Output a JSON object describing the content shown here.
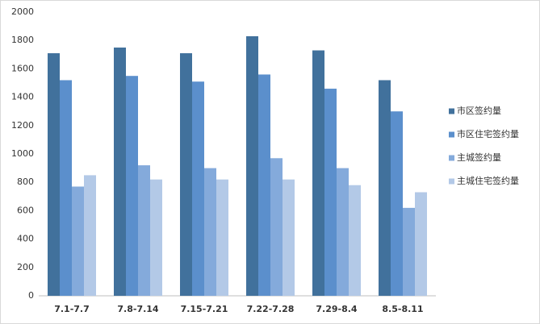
{
  "chart_data": {
    "type": "bar",
    "categories": [
      "7.1-7.7",
      "7.8-7.14",
      "7.15-7.21",
      "7.22-7.28",
      "7.29-8.4",
      "8.5-8.11"
    ],
    "series": [
      {
        "name": "市区签约量",
        "color": "#41719c",
        "values": [
          1710,
          1750,
          1710,
          1830,
          1730,
          1520
        ]
      },
      {
        "name": "市区住宅签约量",
        "color": "#5b8fcc",
        "values": [
          1520,
          1550,
          1510,
          1560,
          1460,
          1300
        ]
      },
      {
        "name": "主城签约量",
        "color": "#84aadb",
        "values": [
          770,
          920,
          900,
          970,
          900,
          620
        ]
      },
      {
        "name": "主城住宅签约量",
        "color": "#b3c9e7",
        "values": [
          850,
          820,
          820,
          820,
          780,
          730
        ]
      }
    ],
    "ylim": [
      0,
      2000
    ],
    "yticks": [
      0,
      200,
      400,
      600,
      800,
      1000,
      1200,
      1400,
      1600,
      1800,
      2000
    ],
    "grid": false,
    "legend": "right"
  }
}
